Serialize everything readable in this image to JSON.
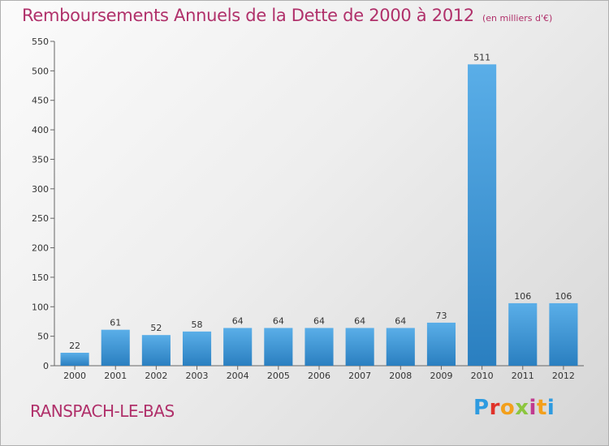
{
  "header": {
    "title": "Remboursements Annuels de la Dette de 2000 à 2012",
    "unit": "(en milliers d'€)"
  },
  "footer": {
    "town": "RANSPACH-LE-BAS",
    "logo_letters": [
      "P",
      "r",
      "o",
      "x",
      "i",
      "t",
      "i"
    ],
    "logo_colors": [
      "#2e9be0",
      "#e0322a",
      "#f3a01c",
      "#8cc63f",
      "#c13a8f",
      "#f3a01c",
      "#2e9be0"
    ]
  },
  "chart_data": {
    "type": "bar",
    "title": "Remboursements Annuels de la Dette de 2000 à 2012",
    "xlabel": "",
    "ylabel": "",
    "categories": [
      "2000",
      "2001",
      "2002",
      "2003",
      "2004",
      "2005",
      "2006",
      "2007",
      "2008",
      "2009",
      "2010",
      "2011",
      "2012"
    ],
    "values": [
      22,
      61,
      52,
      58,
      64,
      64,
      64,
      64,
      64,
      73,
      511,
      106,
      106
    ],
    "data_labels": [
      "22",
      "61",
      "52",
      "58",
      "64",
      "64",
      "64",
      "64",
      "64",
      "73",
      "511",
      "106",
      "106"
    ],
    "ylim": [
      0,
      550
    ],
    "yticks": [
      0,
      50,
      100,
      150,
      200,
      250,
      300,
      350,
      400,
      450,
      500,
      550
    ],
    "grid": false,
    "bar_color_top": "#5aaee8",
    "bar_color_bottom": "#2a7fc0"
  }
}
